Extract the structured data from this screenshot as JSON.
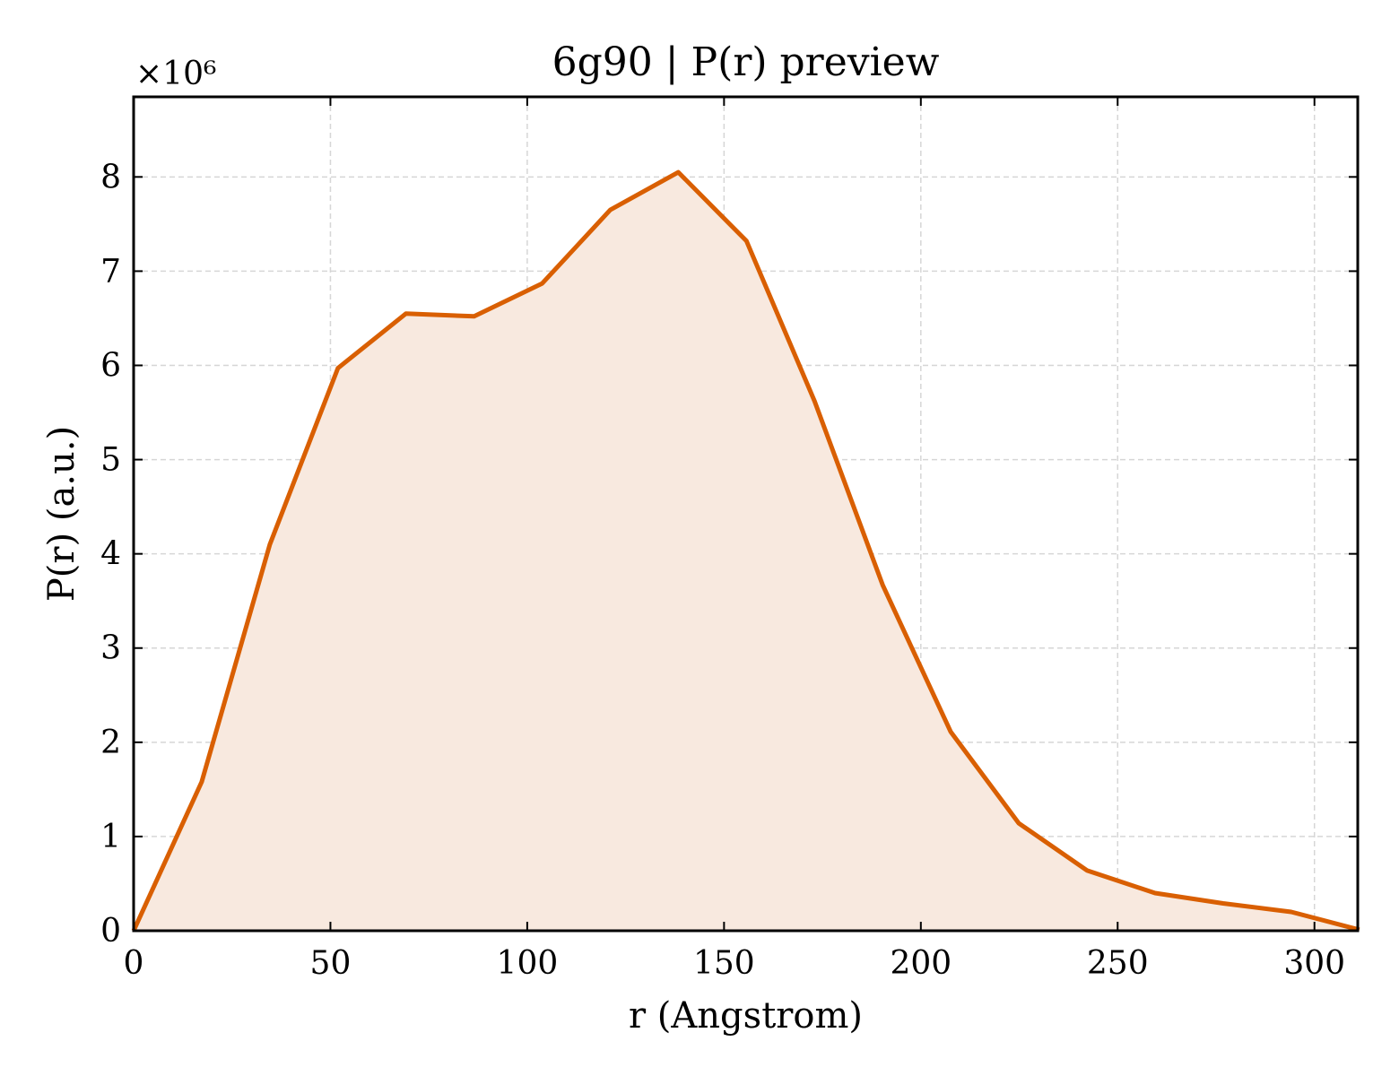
{
  "chart_data": {
    "type": "area",
    "title": "6g90 | P(r) preview",
    "xlabel": "r (Angstrom)",
    "ylabel": "P(r) (a.u.)",
    "y_offset_label": "×10⁶",
    "y_scale": 1000000,
    "xlim": [
      0,
      311
    ],
    "ylim": [
      0,
      8.85
    ],
    "x_ticks": [
      0,
      50,
      100,
      150,
      200,
      250,
      300
    ],
    "y_ticks": [
      0,
      1,
      2,
      3,
      4,
      5,
      6,
      7,
      8
    ],
    "grid": true,
    "series": [
      {
        "x": [
          0,
          17.3,
          34.6,
          51.9,
          69.2,
          86.5,
          103.8,
          121.1,
          138.4,
          155.7,
          173.0,
          190.3,
          207.6,
          224.9,
          242.2,
          259.5,
          276.8,
          294.1,
          311.4
        ],
        "values": [
          0,
          1.58,
          4.1,
          5.97,
          6.55,
          6.52,
          6.87,
          7.65,
          8.05,
          7.32,
          5.62,
          3.67,
          2.11,
          1.14,
          0.64,
          0.4,
          0.29,
          0.2,
          0.01
        ]
      }
    ],
    "colors": {
      "line": "#d95f02",
      "fill": "#f8e9df",
      "grid": "#d6d6d6"
    }
  }
}
